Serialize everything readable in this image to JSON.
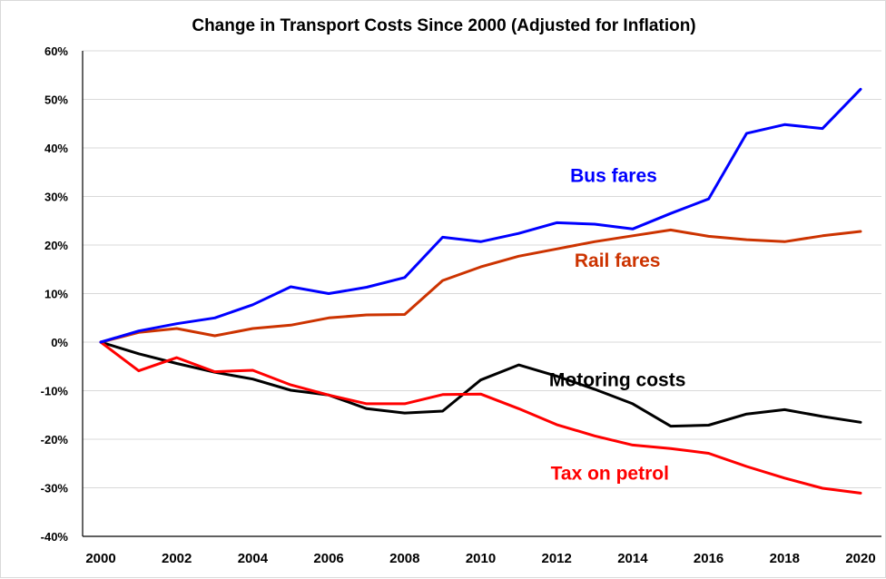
{
  "chart_data": {
    "type": "line",
    "title": "Change in Transport Costs Since 2000 (Adjusted for Inflation)",
    "xlabel": "",
    "ylabel": "",
    "x": [
      2000,
      2001,
      2002,
      2003,
      2004,
      2005,
      2006,
      2007,
      2008,
      2009,
      2010,
      2011,
      2012,
      2013,
      2014,
      2015,
      2016,
      2017,
      2018,
      2019,
      2020
    ],
    "x_tick_labels": [
      "2000",
      "2002",
      "2004",
      "2006",
      "2008",
      "2010",
      "2012",
      "2014",
      "2016",
      "2018",
      "2020"
    ],
    "x_ticks": [
      2000,
      2002,
      2004,
      2006,
      2008,
      2010,
      2012,
      2014,
      2016,
      2018,
      2020
    ],
    "xlim": [
      2000,
      2020
    ],
    "y_ticks": [
      60,
      50,
      40,
      30,
      20,
      10,
      0,
      -10,
      -20,
      -30,
      -40
    ],
    "y_tick_labels": [
      "60%",
      "50%",
      "40%",
      "30%",
      "20%",
      "10%",
      "0%",
      "-10%",
      "-20%",
      "-30%",
      "-40%"
    ],
    "ylim": [
      -40,
      60
    ],
    "y_unit": "%",
    "grid": "horizontal",
    "legend": "inline labels",
    "series": [
      {
        "name": "Bus fares",
        "color": "#0000ff",
        "label_anchor_year": 2013.5,
        "label_anchor_value": 33,
        "values": [
          0,
          2.3,
          3.8,
          5.0,
          7.7,
          11.4,
          10.0,
          11.3,
          13.3,
          21.6,
          20.7,
          22.4,
          24.6,
          24.3,
          23.3,
          26.5,
          29.5,
          43.0,
          44.8,
          44.0,
          52.1
        ]
      },
      {
        "name": "Rail fares",
        "color": "#cc3300",
        "label_anchor_year": 2013.6,
        "label_anchor_value": 15.5,
        "values": [
          0,
          2.0,
          2.8,
          1.3,
          2.8,
          3.5,
          5.0,
          5.6,
          5.7,
          12.7,
          15.5,
          17.7,
          19.2,
          20.7,
          21.9,
          23.1,
          21.8,
          21.1,
          20.7,
          21.9,
          22.8
        ]
      },
      {
        "name": "Motoring costs",
        "color": "#000000",
        "label_anchor_year": 2013.6,
        "label_anchor_value": -9.1,
        "values": [
          0,
          -2.4,
          -4.4,
          -6.2,
          -7.6,
          -9.9,
          -10.9,
          -13.7,
          -14.6,
          -14.2,
          -7.8,
          -4.7,
          -7.0,
          -9.7,
          -12.7,
          -17.3,
          -17.1,
          -14.8,
          -13.9,
          -15.3,
          -16.5
        ]
      },
      {
        "name": "Tax on petrol",
        "color": "#ff0000",
        "label_anchor_year": 2013.4,
        "label_anchor_value": -28.3,
        "values": [
          0,
          -5.9,
          -3.2,
          -6.1,
          -5.8,
          -8.8,
          -10.9,
          -12.7,
          -12.7,
          -10.8,
          -10.7,
          -13.7,
          -17.0,
          -19.3,
          -21.2,
          -21.9,
          -22.9,
          -25.6,
          -28.0,
          -30.1,
          -31.1
        ]
      }
    ],
    "colors": {
      "gridline": "#d9d9d9",
      "axis": "#000000"
    }
  }
}
